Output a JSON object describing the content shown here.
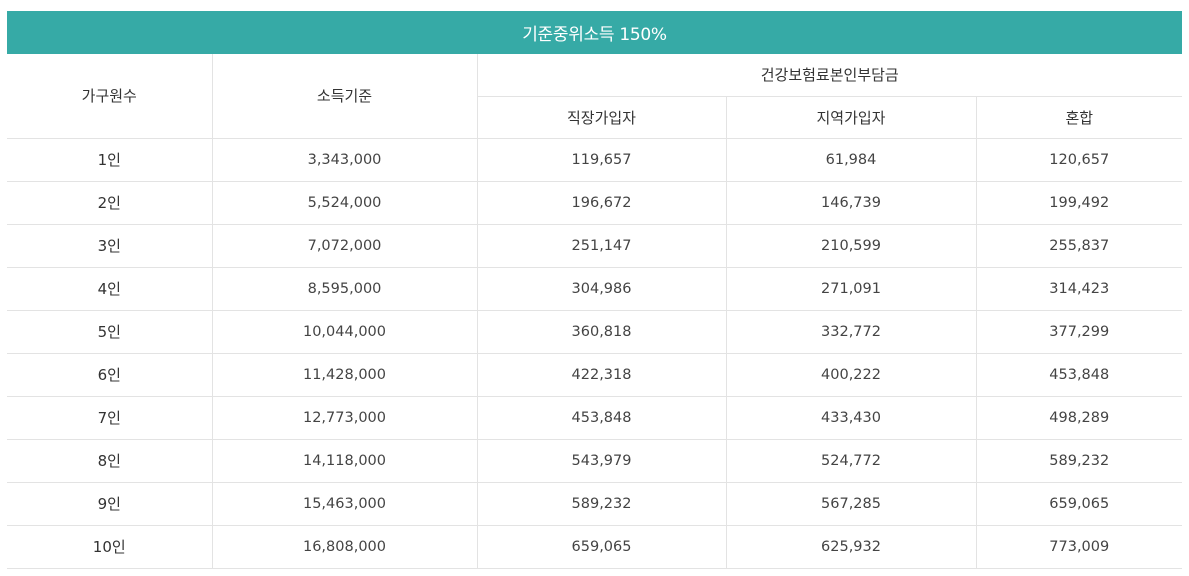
{
  "title": "기준중위소득 150%",
  "headers": {
    "household": "가구원수",
    "income": "소득기준",
    "premium_group": "건강보험료본인부담금",
    "employee": "직장가입자",
    "regional": "지역가입자",
    "mixed": "혼합"
  },
  "rows": [
    {
      "household": "1인",
      "income": "3,343,000",
      "employee": "119,657",
      "regional": "61,984",
      "mixed": "120,657"
    },
    {
      "household": "2인",
      "income": "5,524,000",
      "employee": "196,672",
      "regional": "146,739",
      "mixed": "199,492"
    },
    {
      "household": "3인",
      "income": "7,072,000",
      "employee": "251,147",
      "regional": "210,599",
      "mixed": "255,837"
    },
    {
      "household": "4인",
      "income": "8,595,000",
      "employee": "304,986",
      "regional": "271,091",
      "mixed": "314,423"
    },
    {
      "household": "5인",
      "income": "10,044,000",
      "employee": "360,818",
      "regional": "332,772",
      "mixed": "377,299"
    },
    {
      "household": "6인",
      "income": "11,428,000",
      "employee": "422,318",
      "regional": "400,222",
      "mixed": "453,848"
    },
    {
      "household": "7인",
      "income": "12,773,000",
      "employee": "453,848",
      "regional": "433,430",
      "mixed": "498,289"
    },
    {
      "household": "8인",
      "income": "14,118,000",
      "employee": "543,979",
      "regional": "524,772",
      "mixed": "589,232"
    },
    {
      "household": "9인",
      "income": "15,463,000",
      "employee": "589,232",
      "regional": "567,285",
      "mixed": "659,065"
    },
    {
      "household": "10인",
      "income": "16,808,000",
      "employee": "659,065",
      "regional": "625,932",
      "mixed": "773,009"
    }
  ],
  "colors": {
    "title_bg": "#36aaa6",
    "title_text": "#ffffff",
    "grid_line": "#e3e3e3"
  }
}
